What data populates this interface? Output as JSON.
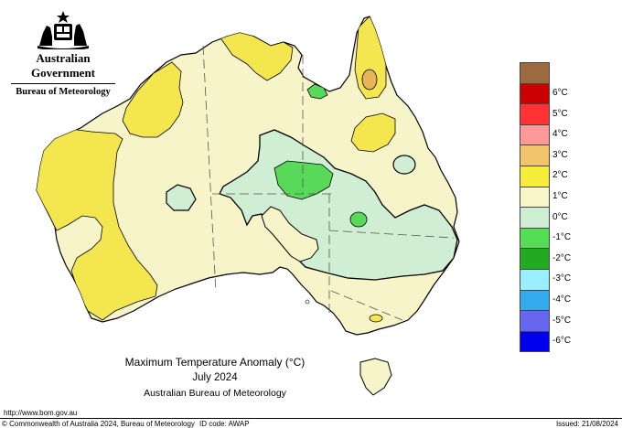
{
  "logo": {
    "government": "Australian Government",
    "bureau": "Bureau of Meteorology"
  },
  "map": {
    "title": "Maximum Temperature Anomaly (°C)",
    "period": "July 2024",
    "source": "Australian Bureau of Meteorology",
    "colors": {
      "land_neutral": "#f7f4c9",
      "warm_1": "#f4e64f",
      "warm_2": "#e9b35a",
      "cool_1": "#cfeed4",
      "cool_2": "#59d959",
      "ocean": "#ffffff"
    }
  },
  "legend": {
    "items": [
      {
        "label": "",
        "color": "#9c6a3c"
      },
      {
        "label": "6°C",
        "color": "#cc0000"
      },
      {
        "label": "5°C",
        "color": "#ff3333"
      },
      {
        "label": "4°C",
        "color": "#ff9999"
      },
      {
        "label": "3°C",
        "color": "#f2c46c"
      },
      {
        "label": "2°C",
        "color": "#f6ec3a"
      },
      {
        "label": "1°C",
        "color": "#f8f5c8"
      },
      {
        "label": "0°C",
        "color": "#cdeed2"
      },
      {
        "label": "-1°C",
        "color": "#55dd55"
      },
      {
        "label": "-2°C",
        "color": "#22aa22"
      },
      {
        "label": "-3°C",
        "color": "#99eeff"
      },
      {
        "label": "-4°C",
        "color": "#33aaee"
      },
      {
        "label": "-5°C",
        "color": "#6666ee"
      },
      {
        "label": "-6°C",
        "color": "#0000ee"
      }
    ]
  },
  "footer": {
    "url": "http://www.bom.gov.au",
    "copyright": "© Commonwealth of Australia 2024, Bureau of Meteorology",
    "id_code": "ID code: AWAP",
    "issued": "Issued: 21/08/2024"
  }
}
